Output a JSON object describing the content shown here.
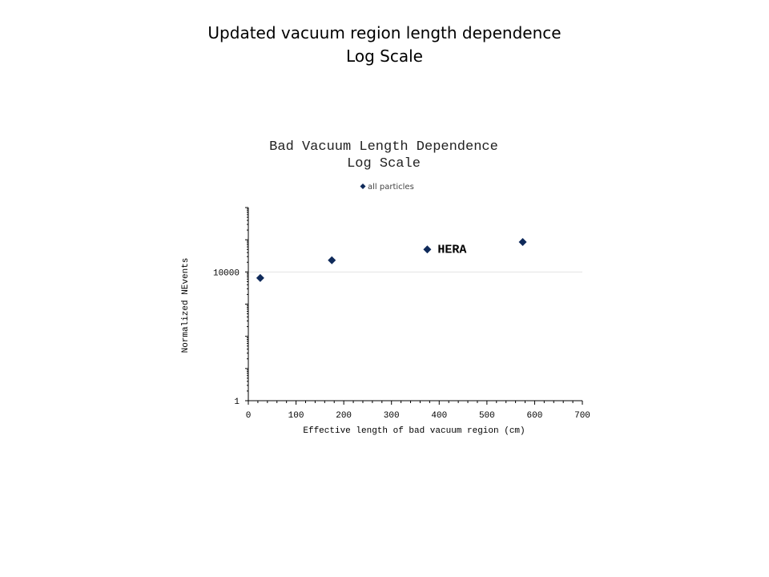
{
  "slide": {
    "title_line1": "Updated vacuum region length dependence",
    "title_line2": "Log Scale"
  },
  "chart_data": {
    "type": "scatter",
    "title": "Bad Vacuum Length Dependence",
    "subtitle": "Log Scale",
    "xlabel": "Effective length of bad vacuum region (cm)",
    "ylabel": "Normalized NEvents",
    "xlim": [
      0,
      700
    ],
    "xticks": [
      0,
      100,
      200,
      300,
      400,
      500,
      600,
      700
    ],
    "y_scale": "log",
    "ylim": [
      1,
      1000000
    ],
    "yticks_labeled": [
      {
        "value": 1,
        "label": "1"
      },
      {
        "value": 10000,
        "label": "10000"
      }
    ],
    "grid": "horizontal at 10000",
    "legend_position": "top-center",
    "series": [
      {
        "name": "all particles",
        "marker": "diamond",
        "color": "#0f2a5a",
        "x": [
          25,
          175,
          375,
          575
        ],
        "y": [
          6500,
          23000,
          50000,
          85000
        ]
      }
    ],
    "annotations": [
      {
        "text": "HERA",
        "x": 375,
        "y": 50000
      }
    ]
  }
}
